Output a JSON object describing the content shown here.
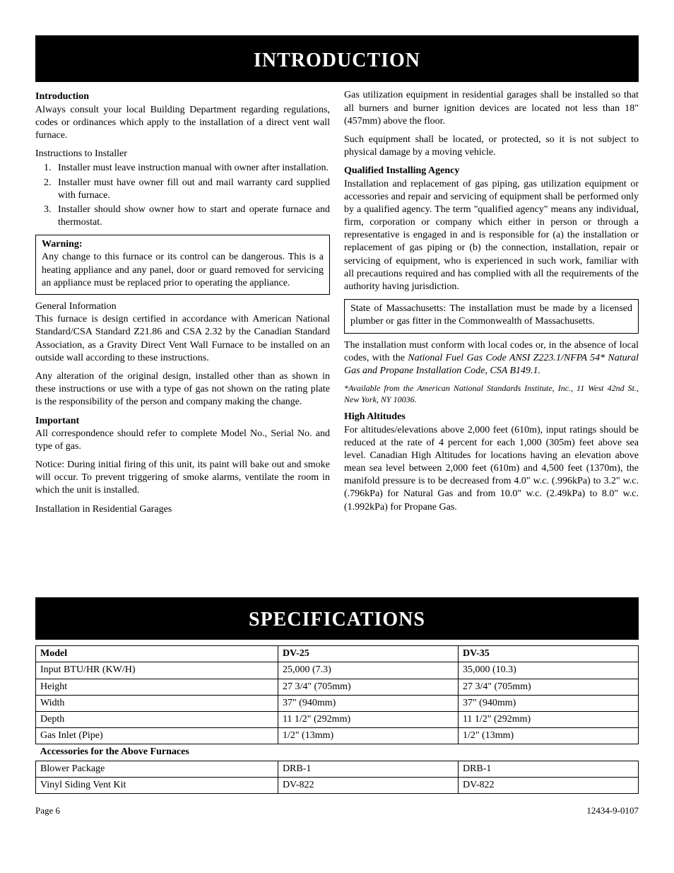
{
  "banner1": "INTRODUCTION",
  "left": {
    "intro_h": "Introduction",
    "intro_p": "Always consult your local Building Department regarding regulations, codes or ordinances which apply to the installation of a direct vent wall furnace.",
    "instr_h": "Instructions to Installer",
    "instr": [
      "Installer must leave instruction manual with owner after installation.",
      "Installer must have owner fill out and mail warranty card supplied with furnace.",
      "Installer should show owner how to start and operate furnace and thermostat."
    ],
    "warn_h": "Warning:",
    "warn_p": "Any change to this furnace or its control can be dangerous.  This is a heating appliance and any panel, door or guard removed for servicing an appliance must be replaced prior to operating the appliance.",
    "gen_h": "General Information",
    "gen_p1": "This furnace is design certified in accordance with American National Standard/CSA Standard Z21.86 and CSA 2.32 by the Canadian Standard Association, as a Gravity Direct Vent Wall Furnace to be installed on an outside wall according to these instructions.",
    "gen_p2": "Any alteration of the original design, installed other than as shown in these instructions or use with a type of gas not shown on the rating plate is the responsibility of the person and company making the change.",
    "imp_h": "Important",
    "imp_p1": "All correspondence should refer to complete Model No., Serial No. and type of gas.",
    "imp_p2": "Notice:  During initial firing of this unit, its paint will bake out  and smoke will occur.  To prevent triggering of smoke alarms, ventilate the room in which the unit is installed.",
    "garage_h": "Installation in Residential Garages"
  },
  "right": {
    "gar_p1": "Gas utilization equipment in residential garages shall be installed so that all burners and burner ignition devices are located not less than 18\" (457mm) above the floor.",
    "gar_p2": "Such equipment shall be located, or protected, so it is not subject to physical damage by a moving vehicle.",
    "qual_h": "Qualified Installing Agency",
    "qual_p": "Installation and replacement of gas piping, gas utilization equipment or accessories and repair and servicing of equipment shall be performed only by a  qualified agency.  The term \"qualified agency\" means any individual, firm, corporation or company which either in person or through a representative is engaged in and is responsible for (a) the installation or replacement of gas piping or (b) the connection, installation, repair or servicing of equipment, who is experienced in such work, familiar with all precautions required and has complied with all the requirements of the authority having jurisdiction.",
    "mass_box": "State of Massachusetts: The installation must be made by a licensed plumber or gas fitter in the Commonwealth of Massachusetts.",
    "codes_pre": "The installation must conform with local codes or, in the absence of local codes, with the ",
    "codes_ital": "National Fuel Gas Code ANSI  Z223.1/NFPA 54* Natural Gas and Propane Installation Code, CSA B149.1.",
    "codes_note": "*Available from the American National Standards Institute, Inc., 11 West 42nd St., New York, NY 10036.",
    "alt_h": "High Altitudes",
    "alt_p": "For altitudes/elevations above 2,000 feet (610m), input ratings should be reduced at the rate of 4 percent for each 1,000 (305m) feet above sea level.  Canadian High Altitudes for locations having an elevation above mean sea level between 2,000 feet (610m) and 4,500 feet (1370m), the manifold pressure is to be decreased from 4.0\" w.c. (.996kPa) to 3.2\" w.c. (.796kPa) for Natural Gas and from 10.0\" w.c. (2.49kPa) to 8.0\" w.c. (1.992kPa) for Propane Gas."
  },
  "banner2": "SPECIFICATIONS",
  "spec": {
    "header": [
      "Model",
      "DV-25",
      "DV-35"
    ],
    "rows": [
      [
        "Input BTU/HR (KW/H)",
        "25,000 (7.3)",
        "35,000 (10.3)"
      ],
      [
        "Height",
        "27 3/4\" (705mm)",
        "27 3/4\" (705mm)"
      ],
      [
        "Width",
        "37\" (940mm)",
        "37\" (940mm)"
      ],
      [
        "Depth",
        "11 1/2\" (292mm)",
        "11 1/2\" (292mm)"
      ],
      [
        "Gas Inlet (Pipe)",
        "1/2\" (13mm)",
        "1/2\" (13mm)"
      ]
    ],
    "subhead": "Accessories for the Above Furnaces",
    "rows2": [
      [
        "Blower Package",
        "DRB-1",
        "DRB-1"
      ],
      [
        "Vinyl Siding Vent Kit",
        "DV-822",
        "DV-822"
      ]
    ]
  },
  "footer": {
    "left": "Page 6",
    "right": "12434-9-0107"
  }
}
